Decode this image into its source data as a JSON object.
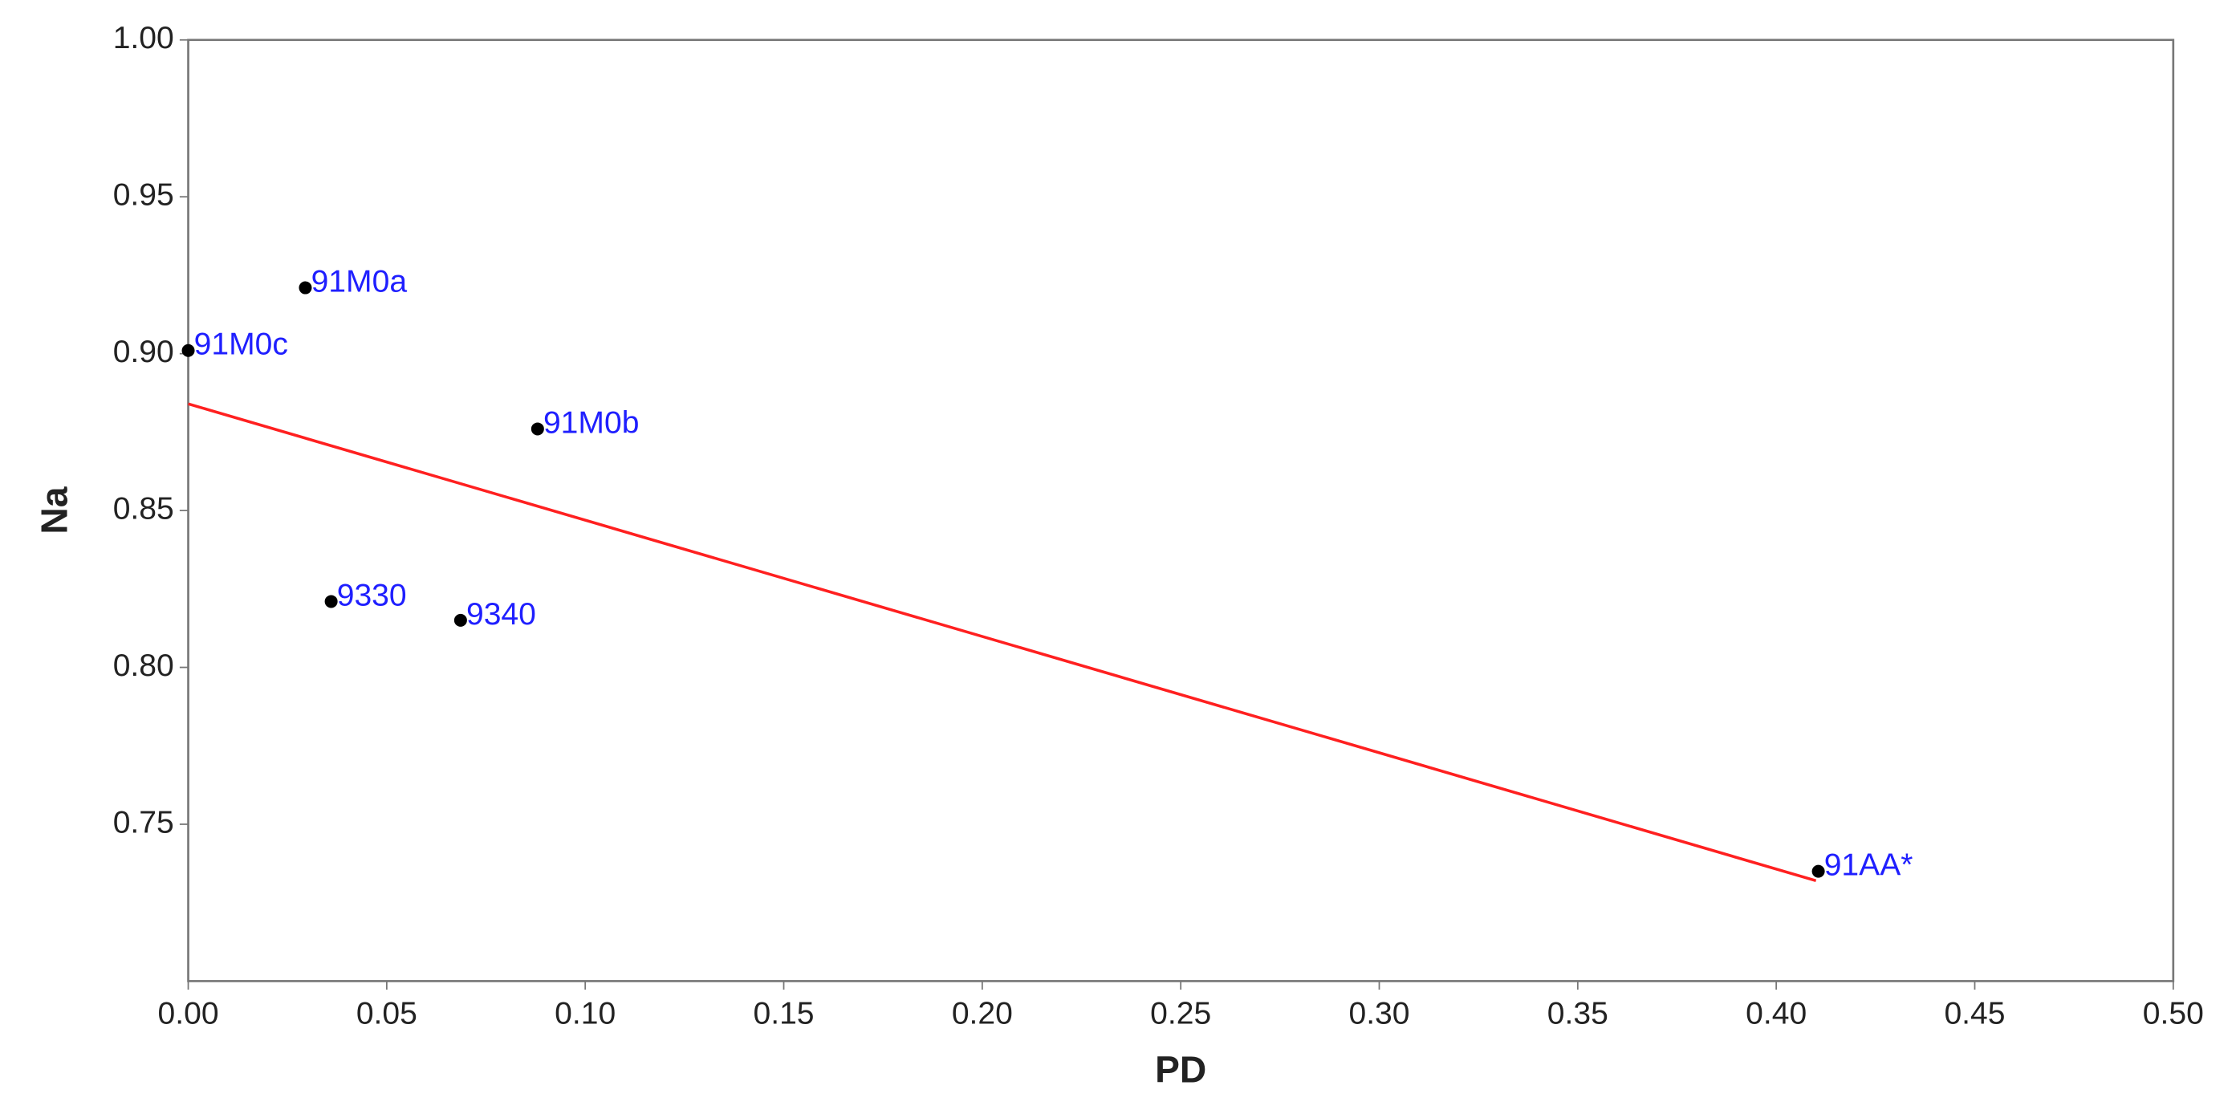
{
  "chart_data": {
    "type": "scatter",
    "x_label": "PD",
    "y_label": "Na",
    "xlim": [
      0,
      0.5
    ],
    "ylim": [
      0.7,
      1.0
    ],
    "xticks": [
      {
        "value": 0,
        "label": "0.00"
      },
      {
        "value": 0.05,
        "label": "0.05"
      },
      {
        "value": 0.1,
        "label": "0.10"
      },
      {
        "value": 0.15,
        "label": "0.15"
      },
      {
        "value": 0.2,
        "label": "0.20"
      },
      {
        "value": 0.25,
        "label": "0.25"
      },
      {
        "value": 0.3,
        "label": "0.30"
      },
      {
        "value": 0.35,
        "label": "0.35"
      },
      {
        "value": 0.4,
        "label": "0.40"
      },
      {
        "value": 0.45,
        "label": "0.45"
      },
      {
        "value": 0.5,
        "label": "0.50"
      }
    ],
    "yticks": [
      {
        "value": 0.75,
        "label": "0.75"
      },
      {
        "value": 0.8,
        "label": "0.80"
      },
      {
        "value": 0.85,
        "label": "0.85"
      },
      {
        "value": 0.9,
        "label": "0.90"
      },
      {
        "value": 0.95,
        "label": "0.95"
      },
      {
        "value": 1.0,
        "label": "1.00"
      }
    ],
    "series": [
      {
        "color": "#000000",
        "label_color": "#1f1fff",
        "labels": [
          "91M0a",
          "91M0c",
          "91M0b",
          "9330",
          "9340",
          "91AA*"
        ],
        "x": [
          0.0295,
          0,
          0.088,
          0.036,
          0.0686,
          0.4106
        ],
        "values": [
          0.921,
          0.901,
          0.876,
          0.821,
          0.815,
          0.735
        ]
      }
    ],
    "fit_line": {
      "color": "#ff2020",
      "x": [
        0,
        0.41
      ],
      "values": [
        0.884,
        0.732
      ]
    }
  }
}
